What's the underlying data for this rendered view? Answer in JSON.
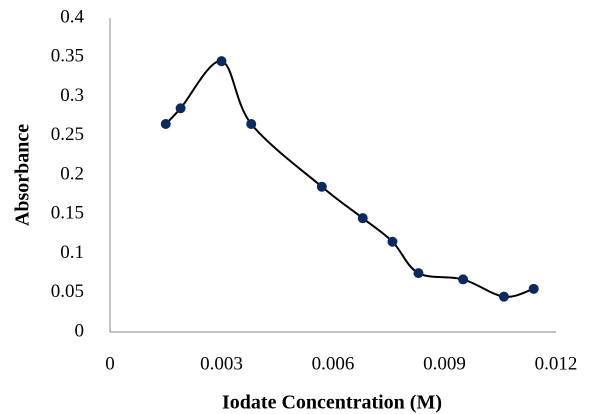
{
  "chart_data": {
    "type": "line",
    "x_label": "Iodate Concentration (M)",
    "y_label": "Absorbance",
    "x": [
      0.0015,
      0.0019,
      0.003,
      0.0038,
      0.0057,
      0.0068,
      0.0076,
      0.0083,
      0.0095,
      0.0106,
      0.0114
    ],
    "series": [
      {
        "color": "#0d2a5e",
        "values": [
          0.265,
          0.285,
          0.345,
          0.265,
          0.185,
          0.145,
          0.115,
          0.075,
          0.067,
          0.045,
          0.055
        ]
      }
    ],
    "xlim": [
      0,
      0.012
    ],
    "xticks": [
      0,
      0.003,
      0.006,
      0.009,
      0.012
    ],
    "ylim": [
      0,
      0.4
    ],
    "yticks": [
      0,
      0.05,
      0.1,
      0.15,
      0.2,
      0.25,
      0.3,
      0.35,
      0.4
    ],
    "smooth": true,
    "grid": false
  }
}
